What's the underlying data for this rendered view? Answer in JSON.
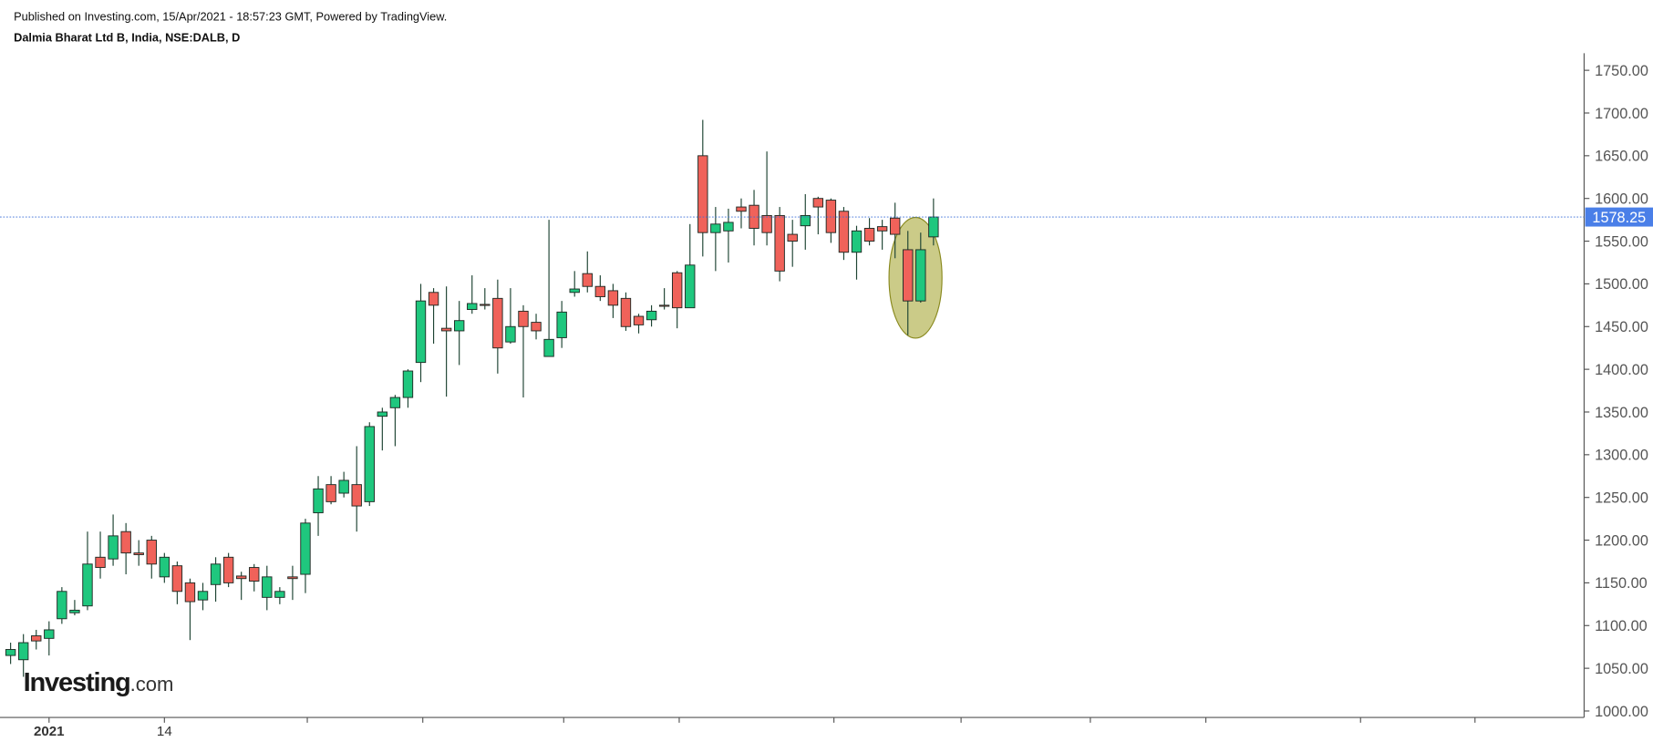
{
  "header": {
    "published": "Published on Investing.com, 15/Apr/2021 - 18:57:23 GMT, Powered by TradingView.",
    "symbol": "Dalmia Bharat Ltd B, India, NSE:DALB, D"
  },
  "logo": {
    "brand": "Investing",
    "suffix": ".com"
  },
  "chart_data": {
    "type": "candlestick",
    "categories": [
      null,
      null,
      null,
      "2021",
      null,
      null,
      null,
      null,
      null,
      null,
      null,
      null,
      "14",
      null,
      null,
      null,
      null,
      null,
      null,
      null,
      null,
      null,
      null,
      null,
      null,
      null,
      null,
      null,
      null,
      null,
      null,
      null,
      null,
      null,
      null,
      null,
      null,
      null,
      null,
      null,
      null,
      null,
      null,
      null,
      null,
      null,
      null,
      null,
      null,
      null,
      null,
      null,
      null,
      null,
      null,
      null,
      null,
      null,
      null,
      null,
      null,
      null,
      null,
      null,
      null,
      null,
      null,
      null,
      null,
      null,
      null,
      null,
      null
    ],
    "open": [
      1065,
      1060,
      1088,
      1085,
      1108,
      1115,
      1123,
      1180,
      1178,
      1210,
      1185,
      1200,
      1157,
      1170,
      1150,
      1130,
      1148,
      1180,
      1158,
      1168,
      1133,
      1133,
      1157,
      1160,
      1232,
      1265,
      1255,
      1265,
      1245,
      1345,
      1355,
      1367,
      1408,
      1490,
      1448,
      1445,
      1470,
      1476,
      1483,
      1432,
      1468,
      1455,
      1415,
      1437,
      1490,
      1512,
      1497,
      1492,
      1483,
      1462,
      1458,
      1475,
      1513,
      1472,
      1650,
      1560,
      1562,
      1590,
      1592,
      1580,
      1580,
      1558,
      1568,
      1600,
      1598,
      1585,
      1537,
      1565,
      1567,
      1577,
      1540,
      1480,
      1555
    ],
    "high": [
      1080,
      1090,
      1095,
      1105,
      1145,
      1130,
      1210,
      1210,
      1230,
      1220,
      1200,
      1205,
      1185,
      1175,
      1155,
      1150,
      1180,
      1185,
      1163,
      1172,
      1170,
      1145,
      1170,
      1225,
      1275,
      1275,
      1280,
      1310,
      1338,
      1355,
      1370,
      1400,
      1500,
      1495,
      1497,
      1480,
      1510,
      1495,
      1505,
      1495,
      1475,
      1465,
      1575,
      1480,
      1515,
      1538,
      1510,
      1500,
      1490,
      1465,
      1475,
      1495,
      1515,
      1570,
      1692,
      1590,
      1588,
      1600,
      1610,
      1655,
      1590,
      1575,
      1605,
      1602,
      1600,
      1590,
      1568,
      1577,
      1575,
      1595,
      1562,
      1560,
      1600
    ],
    "low": [
      1055,
      1040,
      1072,
      1065,
      1102,
      1112,
      1118,
      1155,
      1170,
      1160,
      1170,
      1155,
      1150,
      1125,
      1083,
      1118,
      1128,
      1145,
      1130,
      1140,
      1118,
      1125,
      1130,
      1138,
      1205,
      1242,
      1250,
      1210,
      1240,
      1305,
      1310,
      1355,
      1385,
      1430,
      1368,
      1405,
      1465,
      1470,
      1395,
      1430,
      1367,
      1435,
      1415,
      1425,
      1485,
      1490,
      1480,
      1460,
      1445,
      1442,
      1450,
      1470,
      1448,
      1472,
      1532,
      1515,
      1525,
      1565,
      1545,
      1545,
      1503,
      1520,
      1540,
      1558,
      1548,
      1528,
      1505,
      1545,
      1540,
      1530,
      1440,
      1478,
      1545
    ],
    "close": [
      1072,
      1080,
      1082,
      1095,
      1140,
      1118,
      1172,
      1168,
      1205,
      1185,
      1183,
      1172,
      1180,
      1140,
      1128,
      1140,
      1172,
      1150,
      1155,
      1152,
      1157,
      1140,
      1155,
      1220,
      1260,
      1245,
      1270,
      1240,
      1333,
      1350,
      1367,
      1398,
      1480,
      1475,
      1445,
      1457,
      1477,
      1475,
      1425,
      1450,
      1450,
      1445,
      1435,
      1467,
      1494,
      1497,
      1485,
      1475,
      1450,
      1452,
      1468,
      1474,
      1472,
      1522,
      1560,
      1570,
      1572,
      1585,
      1565,
      1560,
      1515,
      1550,
      1580,
      1590,
      1560,
      1537,
      1562,
      1550,
      1562,
      1558,
      1480,
      1540,
      1578.25
    ],
    "up_color": "#1fc77e",
    "down_color": "#f0625a",
    "last_price": {
      "value": 1578.25,
      "label": "1578.25"
    },
    "ylim": [
      990,
      1775
    ],
    "yticks": [
      {
        "value": 1000,
        "label": "1000.00"
      },
      {
        "value": 1050,
        "label": "1050.00"
      },
      {
        "value": 1100,
        "label": "1100.00"
      },
      {
        "value": 1150,
        "label": "1150.00"
      },
      {
        "value": 1200,
        "label": "1200.00"
      },
      {
        "value": 1250,
        "label": "1250.00"
      },
      {
        "value": 1300,
        "label": "1300.00"
      },
      {
        "value": 1350,
        "label": "1350.00"
      },
      {
        "value": 1400,
        "label": "1400.00"
      },
      {
        "value": 1450,
        "label": "1450.00"
      },
      {
        "value": 1500,
        "label": "1500.00"
      },
      {
        "value": 1550,
        "label": "1550.00"
      },
      {
        "value": 1600,
        "label": "1600.00"
      },
      {
        "value": 1650,
        "label": "1650.00"
      },
      {
        "value": 1700,
        "label": "1700.00"
      },
      {
        "value": 1750,
        "label": "1750.00"
      }
    ]
  }
}
